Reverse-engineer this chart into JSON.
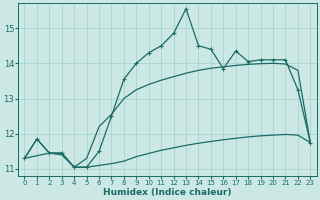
{
  "background_color": "#cce8e5",
  "grid_color": "#a8d4d0",
  "line_color": "#1a6b66",
  "xlim": [
    -0.5,
    23.5
  ],
  "ylim": [
    10.8,
    15.7
  ],
  "xlabel": "Humidex (Indice chaleur)",
  "yticks": [
    11,
    12,
    13,
    14,
    15
  ],
  "xticks": [
    0,
    1,
    2,
    3,
    4,
    5,
    6,
    7,
    8,
    9,
    10,
    11,
    12,
    13,
    14,
    15,
    16,
    17,
    18,
    19,
    20,
    21,
    22,
    23
  ],
  "series1_x": [
    0,
    1,
    2,
    3,
    4,
    5,
    6,
    7,
    8,
    9,
    10,
    11,
    12,
    13,
    14,
    15,
    16,
    17,
    18,
    19,
    20,
    21,
    22,
    23
  ],
  "series1_y": [
    11.3,
    11.85,
    11.45,
    11.45,
    11.05,
    11.05,
    11.5,
    12.5,
    13.55,
    14.0,
    14.3,
    14.5,
    14.85,
    15.55,
    14.5,
    14.4,
    13.85,
    14.35,
    14.05,
    14.1,
    14.1,
    14.1,
    13.25,
    11.75
  ],
  "series2_x": [
    0,
    2,
    3,
    4,
    5,
    6,
    7,
    8,
    9,
    10,
    11,
    12,
    13,
    14,
    15,
    16,
    17,
    18,
    19,
    20,
    21,
    22,
    23
  ],
  "series2_y": [
    11.3,
    11.45,
    11.45,
    11.05,
    11.3,
    12.2,
    12.55,
    13.0,
    13.25,
    13.4,
    13.52,
    13.62,
    13.72,
    13.8,
    13.86,
    13.9,
    13.94,
    13.97,
    13.99,
    14.0,
    13.98,
    13.8,
    11.75
  ],
  "series3_x": [
    0,
    1,
    2,
    3,
    4,
    5,
    6,
    7,
    8,
    9,
    10,
    11,
    12,
    13,
    14,
    15,
    16,
    17,
    18,
    19,
    20,
    21,
    22,
    23
  ],
  "series3_y": [
    11.3,
    11.85,
    11.45,
    11.4,
    11.05,
    11.05,
    11.1,
    11.15,
    11.22,
    11.35,
    11.44,
    11.53,
    11.6,
    11.67,
    11.73,
    11.78,
    11.83,
    11.87,
    11.91,
    11.94,
    11.96,
    11.98,
    11.96,
    11.75
  ],
  "marker": "+",
  "markersize": 3.5,
  "linewidth": 0.9
}
